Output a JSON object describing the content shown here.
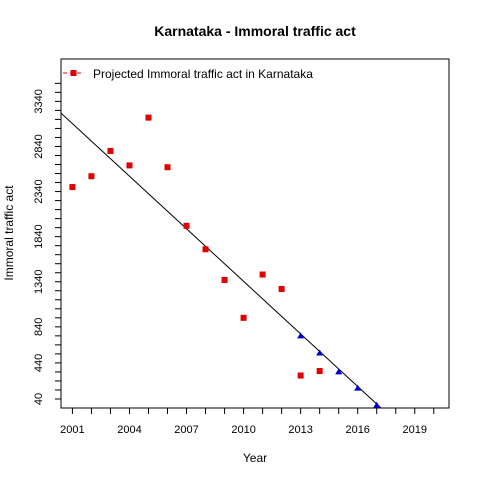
{
  "chart_data": {
    "type": "scatter",
    "title": "Karnataka  -  Immoral traffic act",
    "xlabel": "Year",
    "ylabel": "Immoral traffic act",
    "xlim": [
      2000.4,
      2020.8
    ],
    "ylim": [
      -60,
      3810
    ],
    "x_ticks": [
      2001,
      2004,
      2007,
      2010,
      2013,
      2016,
      2019
    ],
    "y_ticks": [
      40,
      440,
      840,
      1340,
      1840,
      2340,
      2840,
      3340
    ],
    "grid": false,
    "legend_position": "top-left",
    "series": [
      {
        "name": "Projected  Immoral traffic act  in  Karnataka",
        "marker": "square",
        "color": "#e00000",
        "x": [
          2001,
          2002,
          2003,
          2004,
          2005,
          2006,
          2007,
          2008,
          2009,
          2010,
          2011,
          2012,
          2013,
          2014
        ],
        "y": [
          2390,
          2510,
          2790,
          2630,
          3160,
          2610,
          1960,
          1700,
          1360,
          940,
          1420,
          1260,
          300,
          350
        ]
      },
      {
        "marker": "triangle",
        "color": "#0000cc",
        "x": [
          2013,
          2014,
          2015,
          2016,
          2017
        ],
        "y": [
          740,
          550,
          340,
          160,
          -30
        ]
      },
      {
        "type": "line",
        "color": "#000000",
        "x": [
          2000.4,
          2018.0
        ],
        "y": [
          3210,
          -210
        ]
      }
    ]
  }
}
